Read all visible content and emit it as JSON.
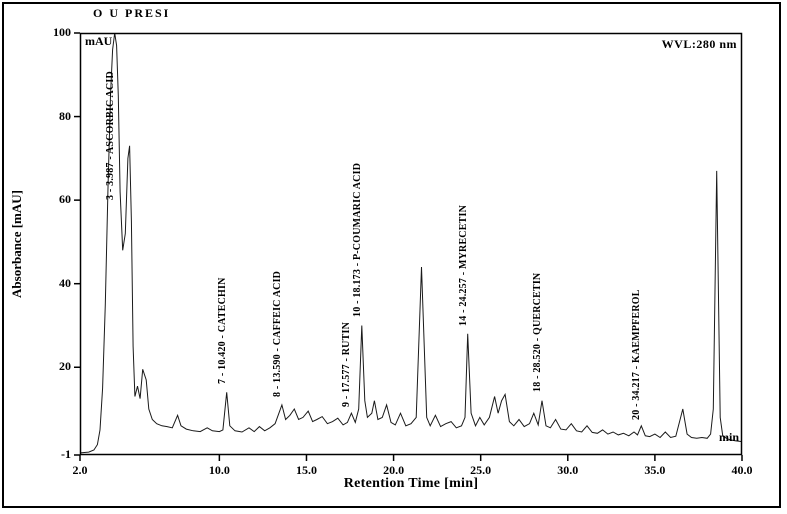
{
  "header": {
    "sample_text": "O U PRESI",
    "wavelength": "WVL:280 nm",
    "y_unit": "mAU",
    "min_label": "min"
  },
  "axes": {
    "x": {
      "title": "Retention Time [min]",
      "min": 2.0,
      "max": 40.0,
      "ticks": [
        2.0,
        10.0,
        15.0,
        20.0,
        25.0,
        30.0,
        35.0,
        40.0
      ],
      "tick_labels": [
        "2.0",
        "10.0",
        "15.0",
        "20.0",
        "25.0",
        "30.0",
        "35.0",
        "40.0"
      ]
    },
    "y": {
      "title": "Absorbance [mAU]",
      "min": -1,
      "max": 100,
      "ticks": [
        -1,
        20,
        40,
        60,
        80,
        100
      ],
      "tick_labels": [
        "-1",
        "20",
        "40",
        "60",
        "80",
        "100"
      ]
    }
  },
  "colors": {
    "line": "#1a1a1a",
    "frame": "#000000",
    "background": "#ffffff"
  },
  "chart_data": {
    "type": "line",
    "title": "O U PRESI",
    "xlabel": "Retention Time [min]",
    "ylabel": "Absorbance [mAU]",
    "detector": "WVL:280 nm",
    "xlim": [
      2.0,
      40.0
    ],
    "ylim": [
      -1,
      100
    ],
    "grid": false,
    "legend": false,
    "peaks": [
      {
        "name": "ascorbic-acid",
        "label": "3 - 3.987 - ASCORBIC ACID",
        "rt": 3.987,
        "height": 100,
        "label_base": 60
      },
      {
        "name": "catechin",
        "label": "7 - 10.420 - CATECHIN",
        "rt": 10.42,
        "height": 14,
        "label_base": 16
      },
      {
        "name": "caffeic-acid",
        "label": "8 - 13.590 - CAFFEIC ACID",
        "rt": 13.59,
        "height": 11,
        "label_base": 13
      },
      {
        "name": "rutin",
        "label": "9 - 17.577 - RUTIN",
        "rt": 17.577,
        "height": 9,
        "label_base": 10.5
      },
      {
        "name": "p-coumaric-acid",
        "label": "10 - 18.173 - P-COUMARIC ACID",
        "rt": 18.173,
        "height": 30,
        "label_base": 32
      },
      {
        "name": "myrecetin",
        "label": "14 - 24.257 - MYRECETIN",
        "rt": 24.257,
        "height": 28,
        "label_base": 30
      },
      {
        "name": "quercetin",
        "label": "18 - 28.520 - QUERCETIN",
        "rt": 28.52,
        "height": 12,
        "label_base": 14
      },
      {
        "name": "kaempferol",
        "label": "20 - 34.217 - KAEMPFEROL",
        "rt": 34.217,
        "height": 6,
        "label_base": 7.5
      }
    ],
    "trace": [
      [
        2.0,
        -0.5
      ],
      [
        2.5,
        -0.3
      ],
      [
        2.8,
        0.2
      ],
      [
        3.0,
        1.5
      ],
      [
        3.15,
        5
      ],
      [
        3.3,
        15
      ],
      [
        3.45,
        35
      ],
      [
        3.6,
        62
      ],
      [
        3.75,
        85
      ],
      [
        3.87,
        96
      ],
      [
        3.99,
        100
      ],
      [
        4.1,
        97
      ],
      [
        4.2,
        85
      ],
      [
        4.3,
        62
      ],
      [
        4.45,
        48
      ],
      [
        4.6,
        52
      ],
      [
        4.75,
        70
      ],
      [
        4.85,
        73
      ],
      [
        4.95,
        55
      ],
      [
        5.05,
        25
      ],
      [
        5.15,
        13
      ],
      [
        5.3,
        15.5
      ],
      [
        5.45,
        12.5
      ],
      [
        5.6,
        19.5
      ],
      [
        5.8,
        17
      ],
      [
        5.95,
        10
      ],
      [
        6.15,
        7.5
      ],
      [
        6.4,
        6.5
      ],
      [
        6.7,
        6
      ],
      [
        7.0,
        5.8
      ],
      [
        7.3,
        5.5
      ],
      [
        7.6,
        8.5
      ],
      [
        7.8,
        6
      ],
      [
        8.1,
        5.2
      ],
      [
        8.5,
        4.8
      ],
      [
        8.9,
        4.6
      ],
      [
        9.3,
        5.5
      ],
      [
        9.6,
        4.8
      ],
      [
        10.0,
        4.6
      ],
      [
        10.2,
        5
      ],
      [
        10.42,
        14
      ],
      [
        10.6,
        6
      ],
      [
        10.9,
        4.8
      ],
      [
        11.3,
        4.5
      ],
      [
        11.7,
        5.5
      ],
      [
        12.0,
        4.6
      ],
      [
        12.3,
        5.8
      ],
      [
        12.6,
        4.8
      ],
      [
        12.9,
        5.5
      ],
      [
        13.2,
        6.5
      ],
      [
        13.59,
        11
      ],
      [
        13.8,
        7.5
      ],
      [
        14.05,
        8.5
      ],
      [
        14.3,
        10
      ],
      [
        14.55,
        7.5
      ],
      [
        14.8,
        8
      ],
      [
        15.1,
        9.5
      ],
      [
        15.35,
        7
      ],
      [
        15.6,
        7.5
      ],
      [
        15.9,
        8.2
      ],
      [
        16.2,
        6.5
      ],
      [
        16.5,
        7
      ],
      [
        16.8,
        7.8
      ],
      [
        17.1,
        6.2
      ],
      [
        17.35,
        6.8
      ],
      [
        17.577,
        9
      ],
      [
        17.8,
        6.8
      ],
      [
        18.0,
        10
      ],
      [
        18.173,
        30
      ],
      [
        18.35,
        12
      ],
      [
        18.5,
        8
      ],
      [
        18.75,
        9
      ],
      [
        18.9,
        12
      ],
      [
        19.1,
        7.5
      ],
      [
        19.35,
        8
      ],
      [
        19.6,
        11
      ],
      [
        19.85,
        6.8
      ],
      [
        20.1,
        6.2
      ],
      [
        20.4,
        9
      ],
      [
        20.7,
        6
      ],
      [
        21.0,
        6.5
      ],
      [
        21.3,
        8
      ],
      [
        21.6,
        44
      ],
      [
        21.9,
        8
      ],
      [
        22.1,
        6
      ],
      [
        22.4,
        8.5
      ],
      [
        22.7,
        5.8
      ],
      [
        23.0,
        6.5
      ],
      [
        23.3,
        7
      ],
      [
        23.6,
        5.5
      ],
      [
        23.9,
        6
      ],
      [
        24.1,
        8
      ],
      [
        24.257,
        28
      ],
      [
        24.45,
        9
      ],
      [
        24.7,
        6
      ],
      [
        24.95,
        8
      ],
      [
        25.2,
        6.2
      ],
      [
        25.5,
        8
      ],
      [
        25.8,
        13
      ],
      [
        26.0,
        9
      ],
      [
        26.2,
        12
      ],
      [
        26.4,
        13.5
      ],
      [
        26.65,
        7
      ],
      [
        26.9,
        6
      ],
      [
        27.2,
        7.5
      ],
      [
        27.5,
        5.8
      ],
      [
        27.8,
        6.5
      ],
      [
        28.05,
        9
      ],
      [
        28.3,
        6.2
      ],
      [
        28.52,
        12
      ],
      [
        28.75,
        6
      ],
      [
        29.0,
        5.5
      ],
      [
        29.3,
        7.5
      ],
      [
        29.6,
        5.2
      ],
      [
        29.9,
        5
      ],
      [
        30.2,
        6.5
      ],
      [
        30.5,
        4.8
      ],
      [
        30.8,
        4.5
      ],
      [
        31.1,
        6
      ],
      [
        31.4,
        4.4
      ],
      [
        31.7,
        4.2
      ],
      [
        32.0,
        5
      ],
      [
        32.3,
        4
      ],
      [
        32.6,
        4.5
      ],
      [
        32.9,
        3.8
      ],
      [
        33.2,
        4.2
      ],
      [
        33.5,
        3.6
      ],
      [
        33.8,
        4.5
      ],
      [
        34.0,
        3.8
      ],
      [
        34.217,
        6
      ],
      [
        34.45,
        3.6
      ],
      [
        34.7,
        3.4
      ],
      [
        35.0,
        4
      ],
      [
        35.3,
        3.2
      ],
      [
        35.6,
        4.5
      ],
      [
        35.9,
        3.2
      ],
      [
        36.2,
        3.5
      ],
      [
        36.6,
        10
      ],
      [
        36.85,
        4
      ],
      [
        37.1,
        3.2
      ],
      [
        37.4,
        3
      ],
      [
        37.7,
        3.2
      ],
      [
        38.0,
        3
      ],
      [
        38.2,
        4
      ],
      [
        38.35,
        10
      ],
      [
        38.55,
        67
      ],
      [
        38.75,
        8
      ],
      [
        38.9,
        3.5
      ],
      [
        39.2,
        2.8
      ],
      [
        39.6,
        2.4
      ],
      [
        40.0,
        2.2
      ]
    ]
  }
}
